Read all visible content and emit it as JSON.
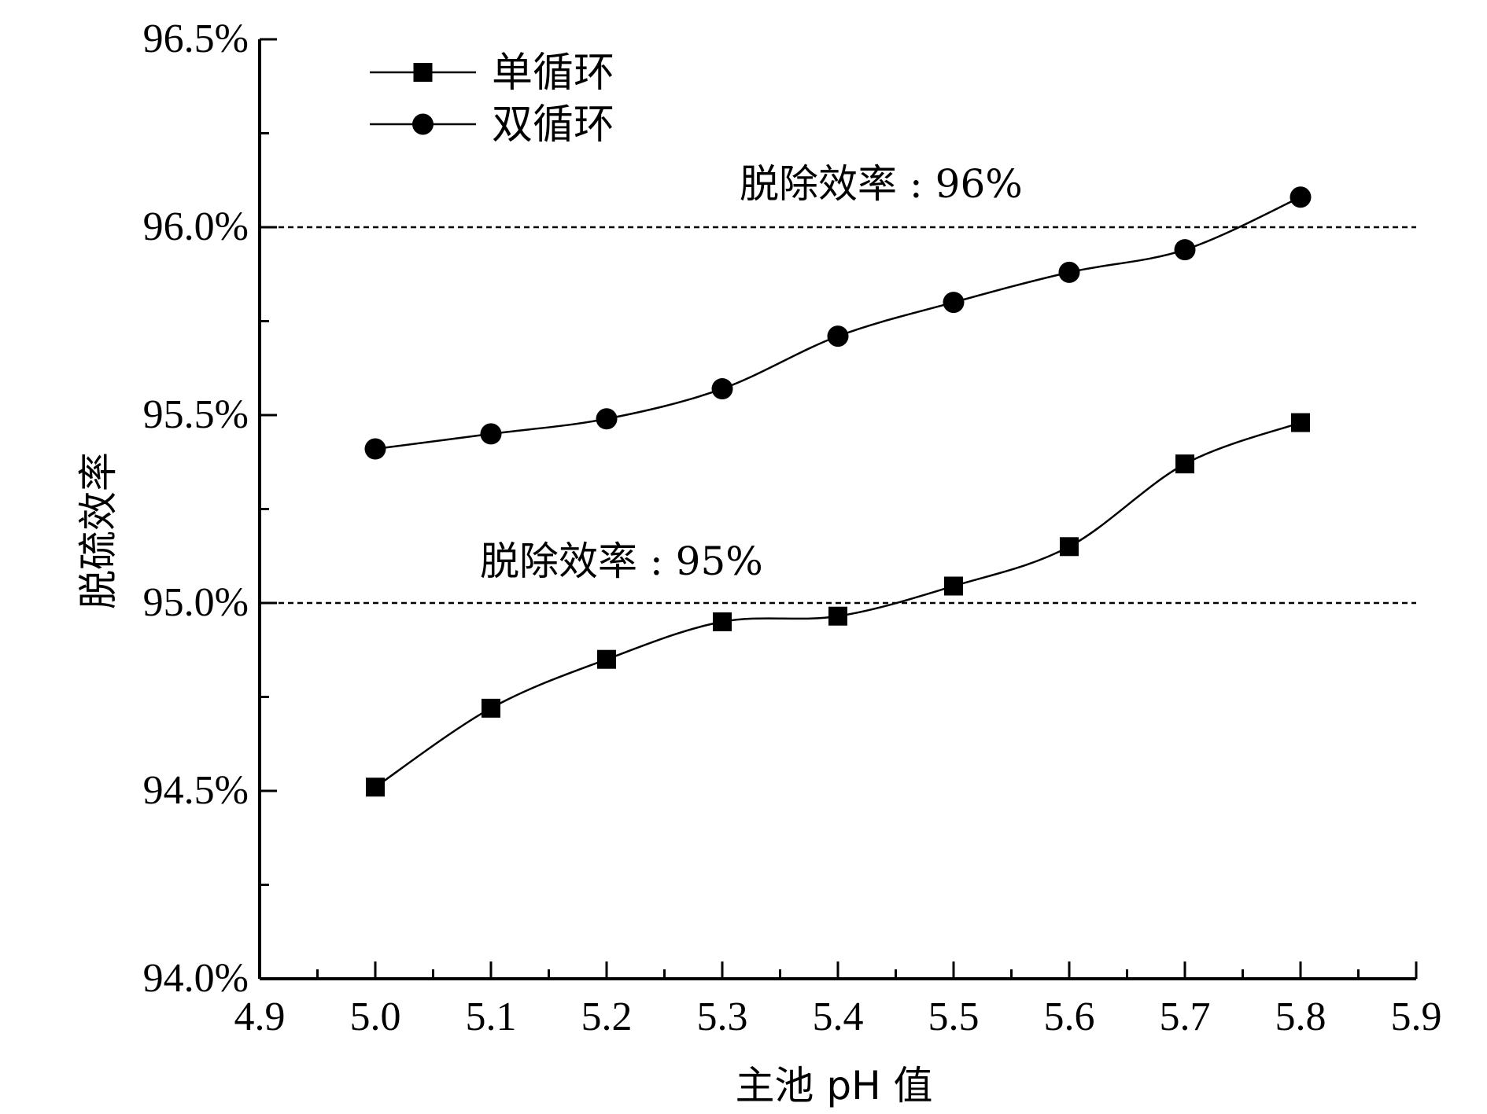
{
  "chart_data": {
    "type": "line",
    "title": "",
    "xlabel": "主池 pH 值",
    "ylabel": "脱硫效率",
    "xlim": [
      4.9,
      5.9
    ],
    "ylim": [
      94.0,
      96.5
    ],
    "x_ticks": [
      4.9,
      5.0,
      5.1,
      5.2,
      5.3,
      5.4,
      5.5,
      5.6,
      5.7,
      5.8,
      5.9
    ],
    "x_tick_labels": [
      "4.9",
      "5.0",
      "5.1",
      "5.2",
      "5.3",
      "5.4",
      "5.5",
      "5.6",
      "5.7",
      "5.8",
      "5.9"
    ],
    "y_ticks": [
      94.0,
      94.5,
      95.0,
      95.5,
      96.0,
      96.5
    ],
    "y_tick_labels": [
      "94.0%",
      "94.5%",
      "95.0%",
      "95.5%",
      "96.0%",
      "96.5%"
    ],
    "y_minor_ticks": [
      94.25,
      94.75,
      95.25,
      95.75,
      96.25
    ],
    "x_minor_ticks": [
      4.95,
      5.05,
      5.15,
      5.25,
      5.35,
      5.45,
      5.55,
      5.65,
      5.75,
      5.85
    ],
    "grid": false,
    "legend_position": "top-left",
    "x": [
      5.0,
      5.1,
      5.2,
      5.3,
      5.4,
      5.5,
      5.6,
      5.7,
      5.8
    ],
    "series": [
      {
        "name": "单循环",
        "marker": "square",
        "color": "#000000",
        "values": [
          94.51,
          94.72,
          94.85,
          94.95,
          94.965,
          95.045,
          95.15,
          95.37,
          95.48
        ]
      },
      {
        "name": "双循环",
        "marker": "circle",
        "color": "#000000",
        "values": [
          95.41,
          95.45,
          95.49,
          95.57,
          95.71,
          95.8,
          95.88,
          95.94,
          96.08
        ]
      }
    ],
    "reference_lines": [
      {
        "y": 96.0,
        "label": "脱除效率 : 96%"
      },
      {
        "y": 95.0,
        "label": "脱除效率 : 95%"
      }
    ]
  }
}
